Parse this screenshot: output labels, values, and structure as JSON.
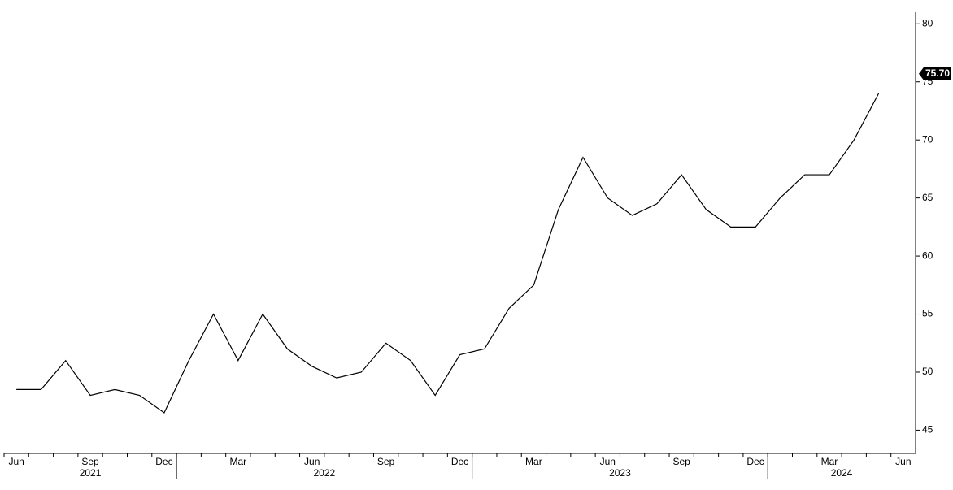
{
  "chart_data": {
    "type": "line",
    "x": [
      "2021-06",
      "2021-07",
      "2021-08",
      "2021-09",
      "2021-10",
      "2021-11",
      "2021-12",
      "2022-01",
      "2022-02",
      "2022-03",
      "2022-04",
      "2022-05",
      "2022-06",
      "2022-07",
      "2022-08",
      "2022-09",
      "2022-10",
      "2022-11",
      "2022-12",
      "2023-01",
      "2023-02",
      "2023-03",
      "2023-04",
      "2023-05",
      "2023-06",
      "2023-07",
      "2023-08",
      "2023-09",
      "2023-10",
      "2023-11",
      "2023-12",
      "2024-01",
      "2024-02",
      "2024-03",
      "2024-04",
      "2024-05",
      "2024-06"
    ],
    "series": [
      {
        "color": "#000000",
        "values": [
          48.5,
          48.5,
          51,
          48,
          48.5,
          48,
          46.5,
          51,
          55,
          51,
          55,
          52,
          50.5,
          49.5,
          50,
          52.5,
          51,
          48,
          51.5,
          52,
          55.5,
          57.5,
          64,
          68.5,
          65,
          63.5,
          64.5,
          67,
          64,
          62.5,
          62.5,
          65,
          67,
          67,
          70,
          74,
          null
        ],
        "last": {
          "value": 75.7,
          "label": "75.70"
        }
      }
    ],
    "ylim": [
      43,
      81
    ],
    "yticks": [
      45,
      50,
      55,
      60,
      65,
      70,
      75,
      80
    ],
    "xticks": [
      {
        "value": "2021-06",
        "label": "Jun"
      },
      {
        "value": "2021-09",
        "label": "Sep"
      },
      {
        "value": "2021-12",
        "label": "Dec"
      },
      {
        "value": "2022-03",
        "label": "Mar"
      },
      {
        "value": "2022-06",
        "label": "Jun"
      },
      {
        "value": "2022-09",
        "label": "Sep"
      },
      {
        "value": "2022-12",
        "label": "Dec"
      },
      {
        "value": "2023-03",
        "label": "Mar"
      },
      {
        "value": "2023-06",
        "label": "Jun"
      },
      {
        "value": "2023-09",
        "label": "Sep"
      },
      {
        "value": "2023-12",
        "label": "Dec"
      },
      {
        "value": "2024-03",
        "label": "Mar"
      },
      {
        "value": "2024-06",
        "label": "Jun"
      }
    ],
    "years": [
      "2021",
      "2022",
      "2023",
      "2024"
    ]
  }
}
